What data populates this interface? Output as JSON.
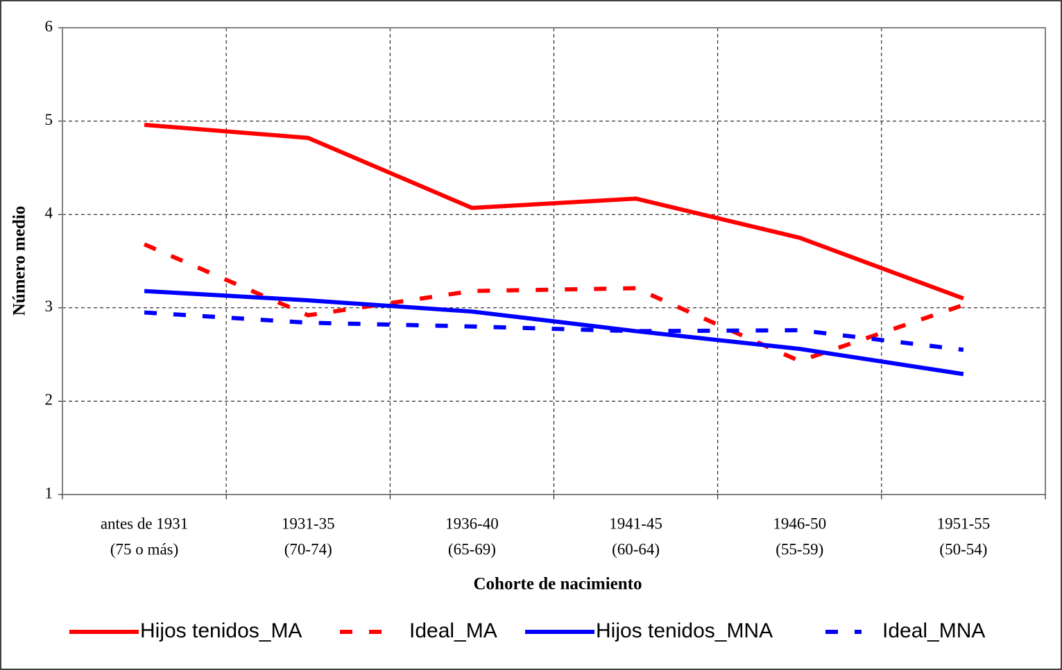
{
  "chart_data": {
    "type": "line",
    "x_label": "Cohorte de nacimiento",
    "y_label": "Número medio",
    "categories": [
      [
        "antes de 1931",
        "(75 o más)"
      ],
      [
        "1931-35",
        "(70-74)"
      ],
      [
        "1936-40",
        "(65-69)"
      ],
      [
        "1941-45",
        "(60-64)"
      ],
      [
        "1946-50",
        "(55-59)"
      ],
      [
        "1951-55",
        "(50-54)"
      ]
    ],
    "series": [
      {
        "name": "Hijos tenidos_MA",
        "color": "#ff0000",
        "style": "solid",
        "values": [
          4.96,
          4.82,
          4.07,
          4.17,
          3.75,
          3.1
        ]
      },
      {
        "name": "Ideal_MA",
        "color": "#ff0000",
        "style": "dashed",
        "values": [
          3.68,
          2.92,
          3.18,
          3.21,
          2.43,
          3.03
        ]
      },
      {
        "name": "Hijos tenidos_MNA",
        "color": "#0000ff",
        "style": "solid",
        "values": [
          3.18,
          3.08,
          2.96,
          2.75,
          2.56,
          2.29
        ]
      },
      {
        "name": "Ideal_MNA",
        "color": "#0000ff",
        "style": "dashed",
        "values": [
          2.95,
          2.84,
          2.8,
          2.75,
          2.76,
          2.55
        ]
      }
    ],
    "ylim": [
      1,
      6
    ],
    "yticks": [
      1,
      2,
      3,
      4,
      5,
      6
    ],
    "grid": true,
    "legend": "bottom"
  }
}
